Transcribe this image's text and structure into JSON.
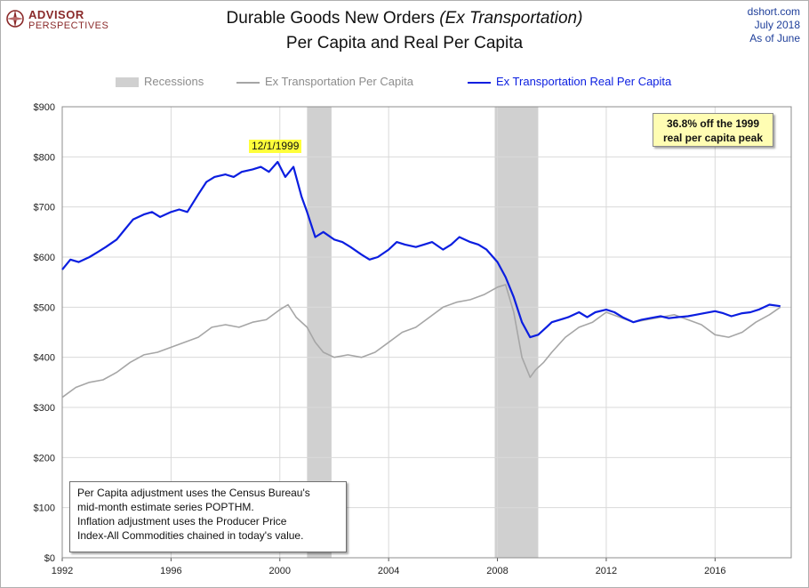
{
  "logo": {
    "line1": "ADVISOR",
    "line2": "PERSPECTIVES"
  },
  "header": {
    "title_main": "Durable Goods New Orders ",
    "title_sub": "(Ex Transportation)",
    "title_line2": "Per Capita and Real Per Capita"
  },
  "source": {
    "site": "dshort.com",
    "date": "July 2018",
    "as_of": "As of June"
  },
  "legend": {
    "recessions": "Recessions",
    "nominal": "Ex Transportation Per Capita",
    "real": "Ex Transportation Real Per Capita"
  },
  "callout": {
    "line1": "36.8% off the 1999",
    "line2": "real per capita peak"
  },
  "peak_label": "12/1/1999",
  "note": {
    "line1": "Per Capita adjustment uses the Census Bureau's",
    "line2": "mid-month estimate series POPTHM.",
    "line3": "Inflation adjustment uses the Producer Price",
    "line4": "Index-All Commodities chained in today's value."
  },
  "colors": {
    "real": "#0b1ee0",
    "nominal": "#a6a6a6",
    "recession": "#d0d0d0",
    "grid": "#d9d9d9",
    "brand": "#8a2a2a",
    "source": "#1f3f9a"
  },
  "chart_data": {
    "type": "line",
    "xlim": [
      1992,
      2018.8
    ],
    "ylim": [
      0,
      900
    ],
    "x_ticks": [
      "1992",
      "1996",
      "2000",
      "2004",
      "2008",
      "2012",
      "2016"
    ],
    "x_tick_values": [
      1992,
      1996,
      2000,
      2004,
      2008,
      2012,
      2016
    ],
    "y_ticks": [
      "$0",
      "$100",
      "$200",
      "$300",
      "$400",
      "$500",
      "$600",
      "$700",
      "$800",
      "$900"
    ],
    "y_tick_values": [
      0,
      100,
      200,
      300,
      400,
      500,
      600,
      700,
      800,
      900
    ],
    "grid": true,
    "legend_position": "top",
    "recessions": [
      [
        2001.0,
        2001.9
      ],
      [
        2007.9,
        2009.5
      ]
    ],
    "series": [
      {
        "name": "Ex Transportation Per Capita",
        "color": "#a6a6a6",
        "x": [
          1992.0,
          1992.5,
          1993.0,
          1993.5,
          1994.0,
          1994.5,
          1995.0,
          1995.5,
          1996.0,
          1996.5,
          1997.0,
          1997.5,
          1998.0,
          1998.5,
          1999.0,
          1999.5,
          2000.0,
          2000.3,
          2000.6,
          2001.0,
          2001.3,
          2001.6,
          2002.0,
          2002.5,
          2003.0,
          2003.5,
          2004.0,
          2004.5,
          2005.0,
          2005.5,
          2006.0,
          2006.5,
          2007.0,
          2007.5,
          2008.0,
          2008.3,
          2008.6,
          2008.9,
          2009.2,
          2009.4,
          2009.7,
          2010.0,
          2010.5,
          2011.0,
          2011.5,
          2012.0,
          2012.5,
          2013.0,
          2013.5,
          2014.0,
          2014.5,
          2015.0,
          2015.5,
          2016.0,
          2016.5,
          2017.0,
          2017.5,
          2018.0,
          2018.4
        ],
        "y": [
          320,
          340,
          350,
          355,
          370,
          390,
          405,
          410,
          420,
          430,
          440,
          460,
          465,
          460,
          470,
          475,
          495,
          505,
          480,
          460,
          430,
          410,
          400,
          405,
          400,
          410,
          430,
          450,
          460,
          480,
          500,
          510,
          515,
          525,
          540,
          545,
          490,
          400,
          360,
          375,
          390,
          410,
          440,
          460,
          470,
          490,
          480,
          470,
          475,
          480,
          485,
          475,
          465,
          445,
          440,
          450,
          470,
          485,
          500
        ]
      },
      {
        "name": "Ex Transportation Real Per Capita",
        "color": "#0b1ee0",
        "x": [
          1992.0,
          1992.3,
          1992.6,
          1993.0,
          1993.3,
          1993.6,
          1994.0,
          1994.3,
          1994.6,
          1995.0,
          1995.3,
          1995.6,
          1996.0,
          1996.3,
          1996.6,
          1997.0,
          1997.3,
          1997.6,
          1998.0,
          1998.3,
          1998.6,
          1999.0,
          1999.3,
          1999.6,
          1999.92,
          2000.2,
          2000.5,
          2000.8,
          2001.0,
          2001.3,
          2001.6,
          2002.0,
          2002.3,
          2002.6,
          2003.0,
          2003.3,
          2003.6,
          2004.0,
          2004.3,
          2004.6,
          2005.0,
          2005.3,
          2005.6,
          2006.0,
          2006.3,
          2006.6,
          2007.0,
          2007.3,
          2007.6,
          2008.0,
          2008.3,
          2008.6,
          2008.9,
          2009.2,
          2009.5,
          2009.8,
          2010.0,
          2010.3,
          2010.6,
          2011.0,
          2011.3,
          2011.6,
          2012.0,
          2012.3,
          2012.6,
          2013.0,
          2013.3,
          2013.6,
          2014.0,
          2014.3,
          2014.6,
          2015.0,
          2015.3,
          2015.6,
          2016.0,
          2016.3,
          2016.6,
          2017.0,
          2017.3,
          2017.6,
          2018.0,
          2018.4
        ],
        "y": [
          575,
          595,
          590,
          600,
          610,
          620,
          635,
          655,
          675,
          685,
          690,
          680,
          690,
          695,
          690,
          725,
          750,
          760,
          765,
          760,
          770,
          775,
          780,
          770,
          790,
          760,
          780,
          720,
          690,
          640,
          650,
          635,
          630,
          620,
          605,
          595,
          600,
          615,
          630,
          625,
          620,
          625,
          630,
          615,
          625,
          640,
          630,
          625,
          615,
          590,
          560,
          520,
          470,
          440,
          445,
          460,
          470,
          475,
          480,
          490,
          480,
          490,
          495,
          490,
          480,
          470,
          475,
          478,
          482,
          478,
          480,
          482,
          485,
          488,
          492,
          488,
          482,
          488,
          490,
          495,
          505,
          502
        ]
      }
    ]
  }
}
